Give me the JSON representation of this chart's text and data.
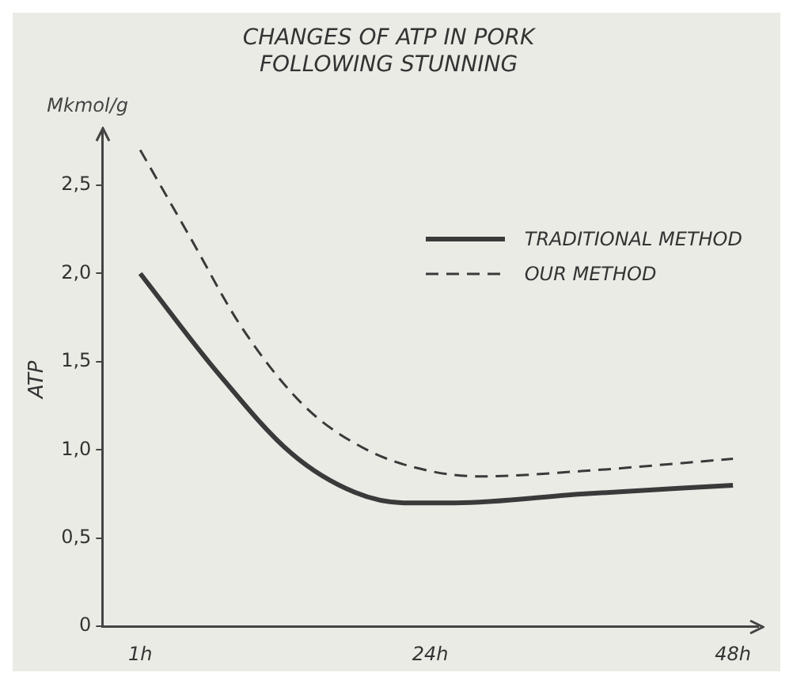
{
  "chart_data": {
    "type": "line",
    "title": "CHANGES OF ATP IN PORK\nFOLLOWING STUNNING",
    "ylabel": "ATP",
    "annotations": [
      "Mkmol/g"
    ],
    "xlim": [
      -2,
      50
    ],
    "xticks": [
      {
        "value": 1,
        "label": "1h"
      },
      {
        "value": 24,
        "label": "24h"
      },
      {
        "value": 48,
        "label": "48h"
      }
    ],
    "ylim": [
      0,
      2.8
    ],
    "yticks": [
      {
        "value": 0,
        "label": "0"
      },
      {
        "value": 0.5,
        "label": "0,5"
      },
      {
        "value": 1,
        "label": "1,0"
      },
      {
        "value": 1.5,
        "label": "1,5"
      },
      {
        "value": 2,
        "label": "2,0"
      },
      {
        "value": 2.5,
        "label": "2,5"
      }
    ],
    "grid": false,
    "legend": "top right",
    "marker": "none",
    "series": [
      {
        "name": "TRADITIONAL METHOD",
        "color": "#3a3a3a",
        "line_style": "solid",
        "x": [
          1,
          7,
          13,
          18,
          22,
          26,
          36,
          48
        ],
        "values": [
          2.0,
          1.45,
          0.98,
          0.76,
          0.7,
          0.7,
          0.75,
          0.8
        ]
      },
      {
        "name": "OUR METHOD",
        "color": "#3a3a3a",
        "line_style": "dashed",
        "x": [
          1,
          5,
          9,
          14,
          19,
          24,
          28,
          36,
          48
        ],
        "values": [
          2.7,
          2.2,
          1.7,
          1.25,
          1.0,
          0.88,
          0.85,
          0.88,
          0.95
        ]
      }
    ]
  }
}
